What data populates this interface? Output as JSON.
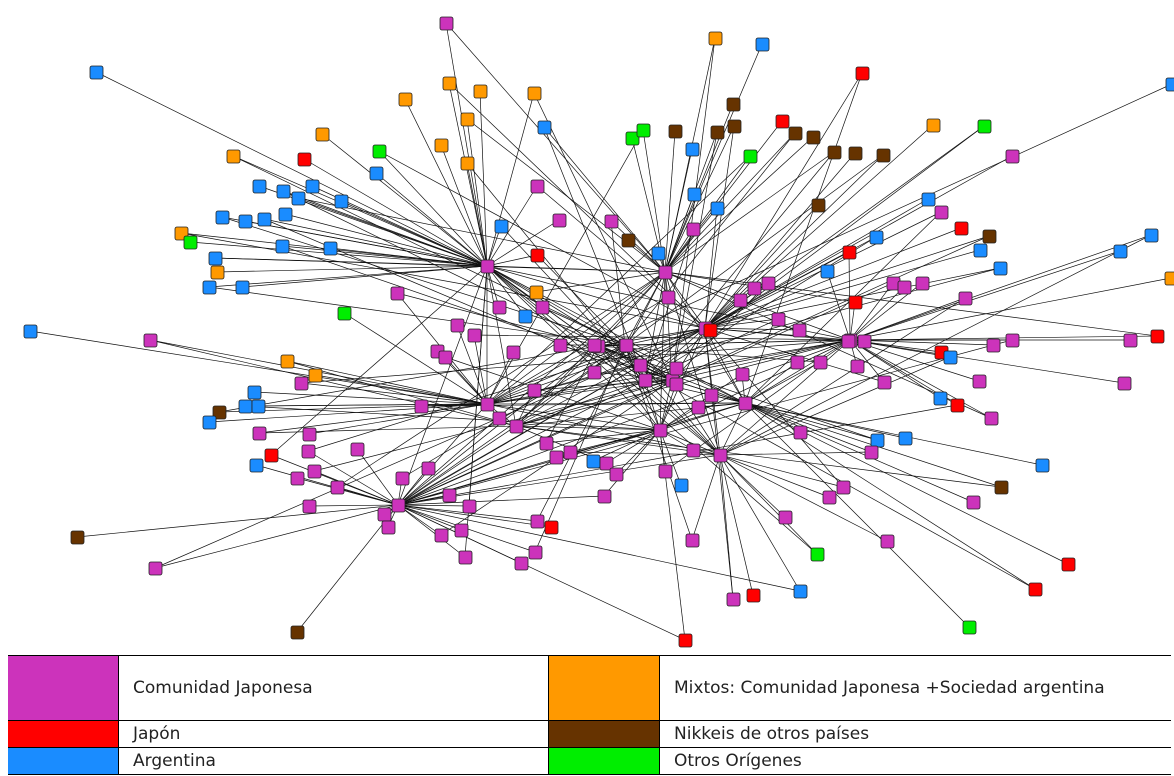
{
  "legend": {
    "comunidad_japonesa": {
      "label": "Comunidad Japonesa",
      "color": "#cc33bb"
    },
    "mixtos": {
      "label": "Mixtos: Comunidad Japonesa +Sociedad argentina",
      "color": "#ff9900"
    },
    "japon": {
      "label": "Japón",
      "color": "#ff0000"
    },
    "nikkeis": {
      "label": "Nikkeis de otros países",
      "color": "#663300"
    },
    "argentina": {
      "label": "Argentina",
      "color": "#1a8cff"
    },
    "otros": {
      "label": "Otros Orígenes",
      "color": "#00ee00"
    }
  }
}
